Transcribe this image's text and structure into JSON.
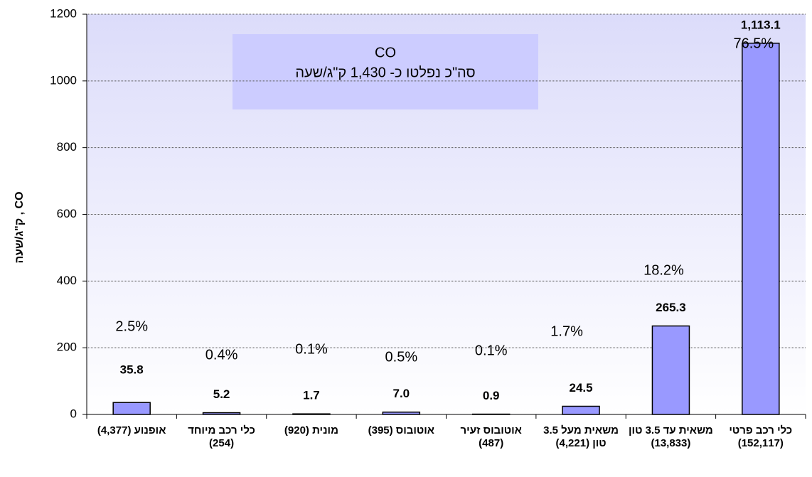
{
  "chart_data": {
    "type": "bar",
    "title": "CO",
    "subtitle": "סה\"כ נפלטו כ- 1,430 ק\"ג/שעה",
    "y_label": "CO , ק\"ג/שעה",
    "categories": [
      "אופנוע (4,377)",
      "כלי רכב מיוחד (254)",
      "מונית (920)",
      "אוטובוס (395)",
      "אוטובוס זעיר (487)",
      "משאית מעל 3.5 טון (4,221)",
      "משאית עד 3.5 טון (13,833)",
      "כלי רכב פרטי (152,117)"
    ],
    "values": [
      35.8,
      5.2,
      1.7,
      7.0,
      0.9,
      24.5,
      265.3,
      1113.1
    ],
    "value_labels": [
      "35.8",
      "5.2",
      "1.7",
      "7.0",
      "0.9",
      "24.5",
      "265.3",
      "1,113.1"
    ],
    "annotations": [
      "2.5%",
      "0.4%",
      "0.1%",
      "0.5%",
      "0.1%",
      "1.7%",
      "18.2%",
      "76.5%"
    ],
    "color": "#9999ff",
    "ylim": [
      0,
      1200
    ],
    "yticks": [
      0,
      200,
      400,
      600,
      800,
      1000,
      1200
    ],
    "grid": true
  }
}
